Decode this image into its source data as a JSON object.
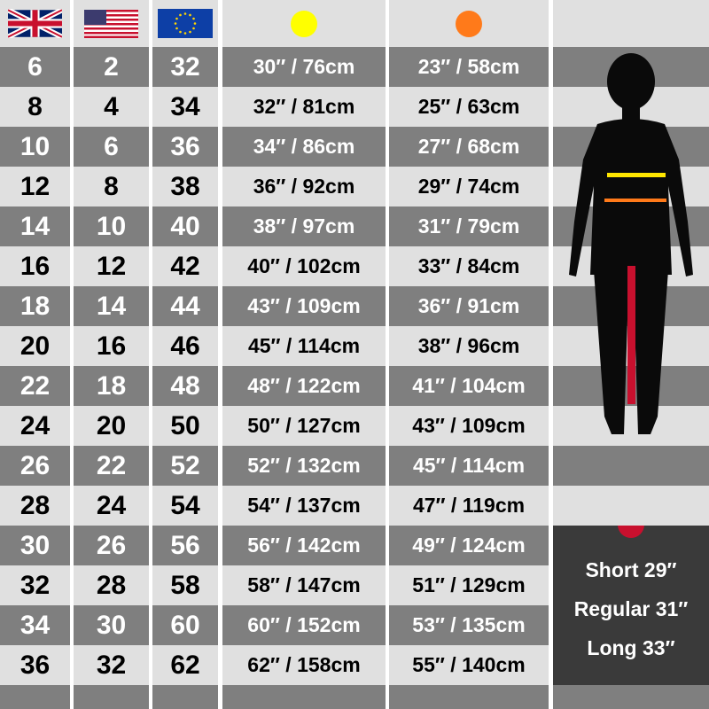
{
  "headers": {
    "uk": {
      "icon": "uk-flag-icon"
    },
    "us": {
      "icon": "us-flag-icon"
    },
    "eu": {
      "icon": "eu-flag-icon"
    },
    "hip": {
      "icon": "yellow-dot-icon",
      "color": "#ffff00"
    },
    "waist": {
      "icon": "orange-dot-icon",
      "color": "#ff7a1a"
    }
  },
  "rows": [
    {
      "uk": "6",
      "us": "2",
      "eu": "32",
      "hip": "30″ / 76cm",
      "waist": "23″ / 58cm"
    },
    {
      "uk": "8",
      "us": "4",
      "eu": "34",
      "hip": "32″ / 81cm",
      "waist": "25″ / 63cm"
    },
    {
      "uk": "10",
      "us": "6",
      "eu": "36",
      "hip": "34″ / 86cm",
      "waist": "27″ / 68cm"
    },
    {
      "uk": "12",
      "us": "8",
      "eu": "38",
      "hip": "36″ / 92cm",
      "waist": "29″ / 74cm"
    },
    {
      "uk": "14",
      "us": "10",
      "eu": "40",
      "hip": "38″ / 97cm",
      "waist": "31″ / 79cm"
    },
    {
      "uk": "16",
      "us": "12",
      "eu": "42",
      "hip": "40″ / 102cm",
      "waist": "33″ / 84cm"
    },
    {
      "uk": "18",
      "us": "14",
      "eu": "44",
      "hip": "43″ / 109cm",
      "waist": "36″ / 91cm"
    },
    {
      "uk": "20",
      "us": "16",
      "eu": "46",
      "hip": "45″ / 114cm",
      "waist": "38″ / 96cm"
    },
    {
      "uk": "22",
      "us": "18",
      "eu": "48",
      "hip": "48″ / 122cm",
      "waist": "41″ / 104cm"
    },
    {
      "uk": "24",
      "us": "20",
      "eu": "50",
      "hip": "50″ / 127cm",
      "waist": "43″ / 109cm"
    },
    {
      "uk": "26",
      "us": "22",
      "eu": "52",
      "hip": "52″ / 132cm",
      "waist": "45″ / 114cm"
    },
    {
      "uk": "28",
      "us": "24",
      "eu": "54",
      "hip": "54″ / 137cm",
      "waist": "47″ / 119cm"
    },
    {
      "uk": "30",
      "us": "26",
      "eu": "56",
      "hip": "56″ / 142cm",
      "waist": "49″ / 124cm"
    },
    {
      "uk": "32",
      "us": "28",
      "eu": "58",
      "hip": "58″ / 147cm",
      "waist": "51″ / 129cm"
    },
    {
      "uk": "34",
      "us": "30",
      "eu": "60",
      "hip": "60″ / 152cm",
      "waist": "53″ / 135cm"
    },
    {
      "uk": "36",
      "us": "32",
      "eu": "62",
      "hip": "62″ / 158cm",
      "waist": "55″ / 140cm"
    }
  ],
  "figure": {
    "icon": "female-silhouette-icon",
    "hip_line_color": "#ffe600",
    "waist_line_color": "#ff7a1a",
    "leg_line_color": "#c8102e"
  },
  "leg_lengths": {
    "icon": "red-dot-icon",
    "color": "#c8102e",
    "items": [
      "Short 29″",
      "Regular 31″",
      "Long 33″"
    ]
  }
}
